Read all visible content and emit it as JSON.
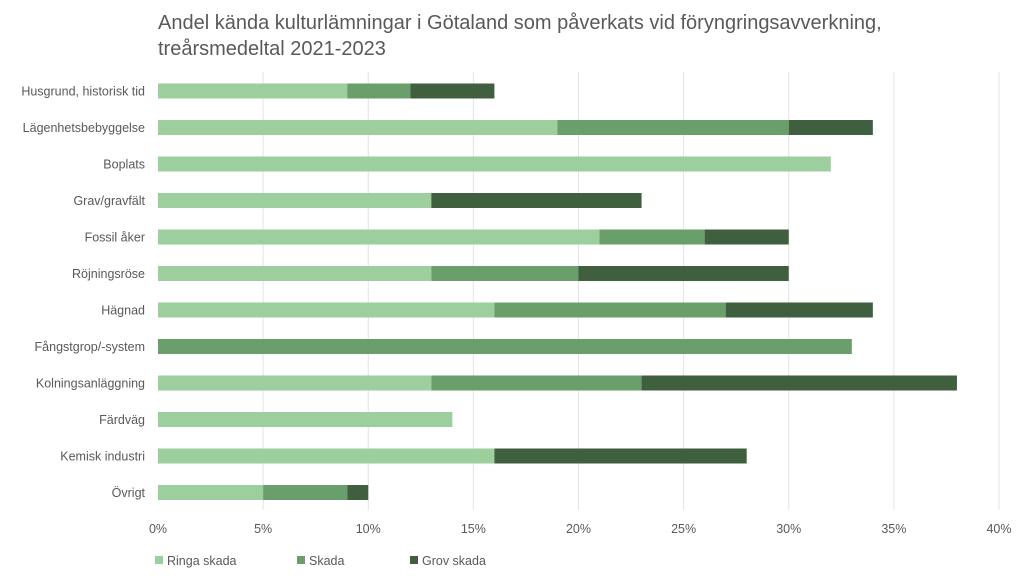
{
  "chart_data": {
    "type": "bar",
    "orientation": "horizontal",
    "stacked": true,
    "title": "Andel kända kulturlämningar i Götaland som påverkats vid föryngringsavverkning, treårsmedeltal 2021-2023",
    "categories": [
      "Husgrund, historisk tid",
      "Lägenhetsbebyggelse",
      "Boplats",
      "Grav/gravfält",
      "Fossil åker",
      "Röjningsröse",
      "Hägnad",
      "Fångstgrop/-system",
      "Kolningsanläggning",
      "Färdväg",
      "Kemisk industri",
      "Övrigt"
    ],
    "series": [
      {
        "name": "Ringa skada",
        "color": "#9DCE9D",
        "values": [
          9,
          19,
          32,
          13,
          21,
          13,
          16,
          0,
          13,
          14,
          16,
          5
        ]
      },
      {
        "name": "Skada",
        "color": "#6A9E6A",
        "values": [
          3,
          11,
          0,
          0,
          5,
          7,
          11,
          33,
          10,
          0,
          0,
          4
        ]
      },
      {
        "name": "Grov skada",
        "color": "#3F5F3F",
        "values": [
          4,
          4,
          0,
          10,
          4,
          10,
          7,
          0,
          15,
          0,
          12,
          1
        ]
      }
    ],
    "xlim": [
      0,
      40
    ],
    "xticks": [
      0,
      5,
      10,
      15,
      20,
      25,
      30,
      35,
      40
    ],
    "xtick_labels": [
      "0%",
      "5%",
      "10%",
      "15%",
      "20%",
      "25%",
      "30%",
      "35%",
      "40%"
    ],
    "grid": true,
    "legend_position": "bottom-left"
  }
}
